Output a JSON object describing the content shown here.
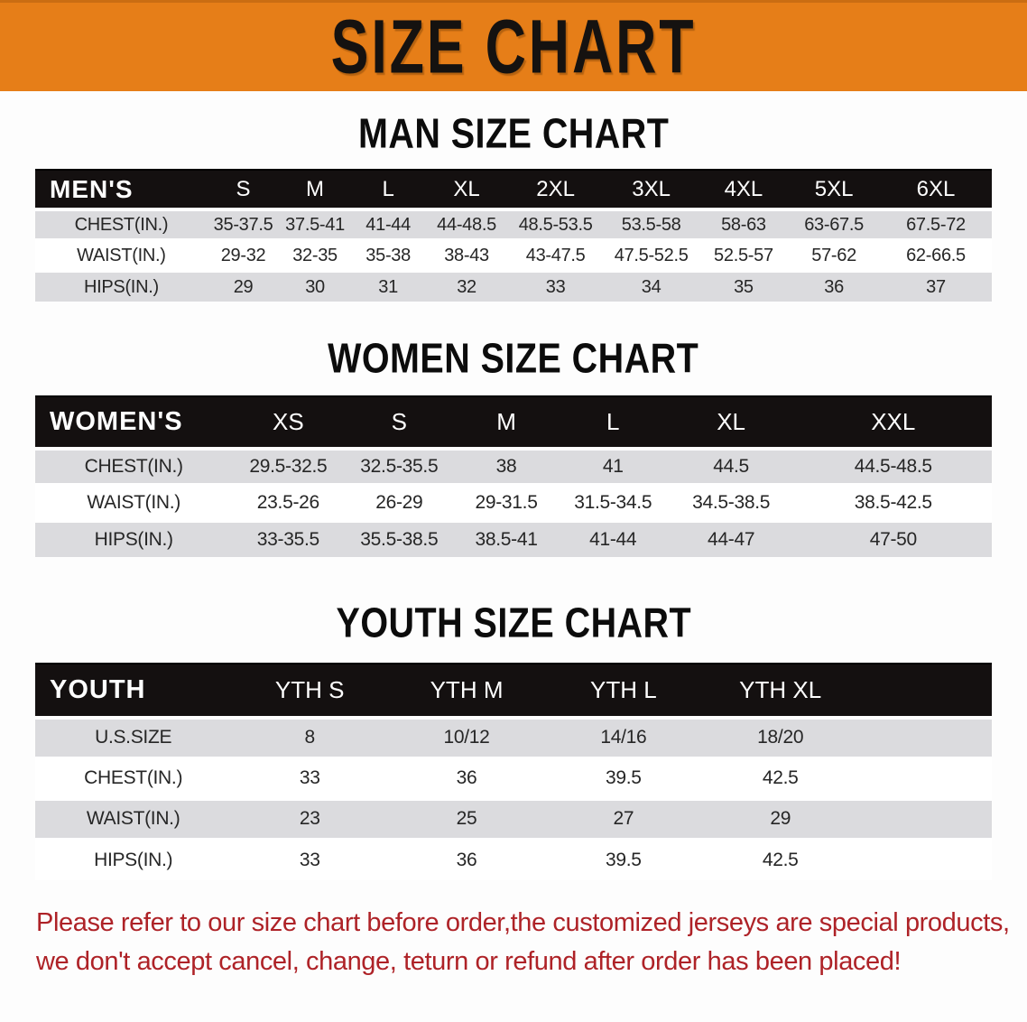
{
  "banner": {
    "title": "SIZE CHART",
    "background_color": "#E67E18",
    "text_color": "#151210"
  },
  "sections": {
    "men": {
      "heading": "MAN SIZE CHART"
    },
    "women": {
      "heading": "WOMEN SIZE CHART"
    },
    "youth": {
      "heading": "YOUTH SIZE CHART"
    }
  },
  "tables": {
    "men": {
      "header_label": "MEN'S",
      "sizes": [
        "S",
        "M",
        "L",
        "XL",
        "2XL",
        "3XL",
        "4XL",
        "5XL",
        "6XL"
      ],
      "rows": [
        {
          "label": "CHEST(IN.)",
          "values": [
            "35-37.5",
            "37.5-41",
            "41-44",
            "44-48.5",
            "48.5-53.5",
            "53.5-58",
            "58-63",
            "63-67.5",
            "67.5-72"
          ]
        },
        {
          "label": "WAIST(IN.)",
          "values": [
            "29-32",
            "32-35",
            "35-38",
            "38-43",
            "43-47.5",
            "47.5-52.5",
            "52.5-57",
            "57-62",
            "62-66.5"
          ]
        },
        {
          "label": "HIPS(IN.)",
          "values": [
            "29",
            "30",
            "31",
            "32",
            "33",
            "34",
            "35",
            "36",
            "37"
          ]
        }
      ]
    },
    "women": {
      "header_label": "WOMEN'S",
      "sizes": [
        "XS",
        "S",
        "M",
        "L",
        "XL",
        "XXL"
      ],
      "rows": [
        {
          "label": "CHEST(IN.)",
          "values": [
            "29.5-32.5",
            "32.5-35.5",
            "38",
            "41",
            "44.5",
            "44.5-48.5"
          ]
        },
        {
          "label": "WAIST(IN.)",
          "values": [
            "23.5-26",
            "26-29",
            "29-31.5",
            "31.5-34.5",
            "34.5-38.5",
            "38.5-42.5"
          ]
        },
        {
          "label": "HIPS(IN.)",
          "values": [
            "33-35.5",
            "35.5-38.5",
            "38.5-41",
            "41-44",
            "44-47",
            "47-50"
          ]
        }
      ]
    },
    "youth": {
      "header_label": "YOUTH",
      "sizes": [
        "YTH S",
        "YTH M",
        "YTH L",
        "YTH XL"
      ],
      "rows": [
        {
          "label": "U.S.SIZE",
          "values": [
            "8",
            "10/12",
            "14/16",
            "18/20"
          ]
        },
        {
          "label": "CHEST(IN.)",
          "values": [
            "33",
            "36",
            "39.5",
            "42.5"
          ]
        },
        {
          "label": "WAIST(IN.)",
          "values": [
            "23",
            "25",
            "27",
            "29"
          ]
        },
        {
          "label": "HIPS(IN.)",
          "values": [
            "33",
            "36",
            "39.5",
            "42.5"
          ]
        }
      ]
    }
  },
  "table_style": {
    "header_background": "#141010",
    "header_text_color": "#ffffff",
    "shaded_row_color": "#DBDBDE"
  },
  "disclaimer": {
    "color": "#AE2227",
    "lines": [
      "Please refer to our size chart before order,the customized jerseys are special products,",
      "we don't accept cancel, change, teturn or refund after order has been placed!"
    ]
  }
}
